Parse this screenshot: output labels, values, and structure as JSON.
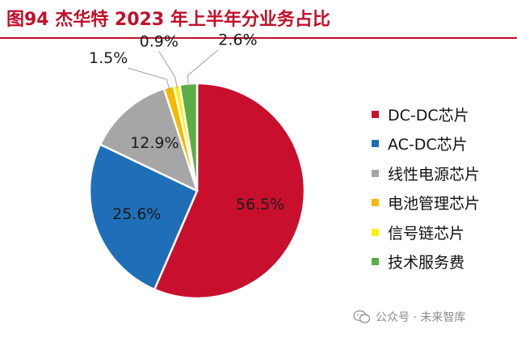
{
  "title": "图94  杰华特 2023 年上半年分业务占比",
  "watermark": {
    "account": "公众号 · 未来智库",
    "icon": "wechat-icon"
  },
  "colors": {
    "title": "#c0102a",
    "rule": "#c0102a"
  },
  "chart_data": {
    "type": "pie",
    "title": "",
    "start_angle_deg": 0,
    "direction": "clockwise",
    "legend_position": "right",
    "slices": [
      {
        "label": "DC-DC芯片",
        "value": 56.5,
        "value_label": "56.5%",
        "color": "#c8102e",
        "label_placement": "inside"
      },
      {
        "label": "AC-DC芯片",
        "value": 25.6,
        "value_label": "25.6%",
        "color": "#1f6fb8",
        "label_placement": "inside"
      },
      {
        "label": "线性电源芯片",
        "value": 12.9,
        "value_label": "12.9%",
        "color": "#a6a6a6",
        "label_placement": "inside"
      },
      {
        "label": "电池管理芯片",
        "value": 1.5,
        "value_label": "1.5%",
        "color": "#f5b800",
        "label_placement": "outside"
      },
      {
        "label": "信号链芯片",
        "value": 0.9,
        "value_label": "0.9%",
        "color": "#fff200",
        "label_placement": "outside"
      },
      {
        "label": "技术服务费",
        "value": 2.6,
        "value_label": "2.6%",
        "color": "#5aae46",
        "label_placement": "outside"
      }
    ]
  }
}
